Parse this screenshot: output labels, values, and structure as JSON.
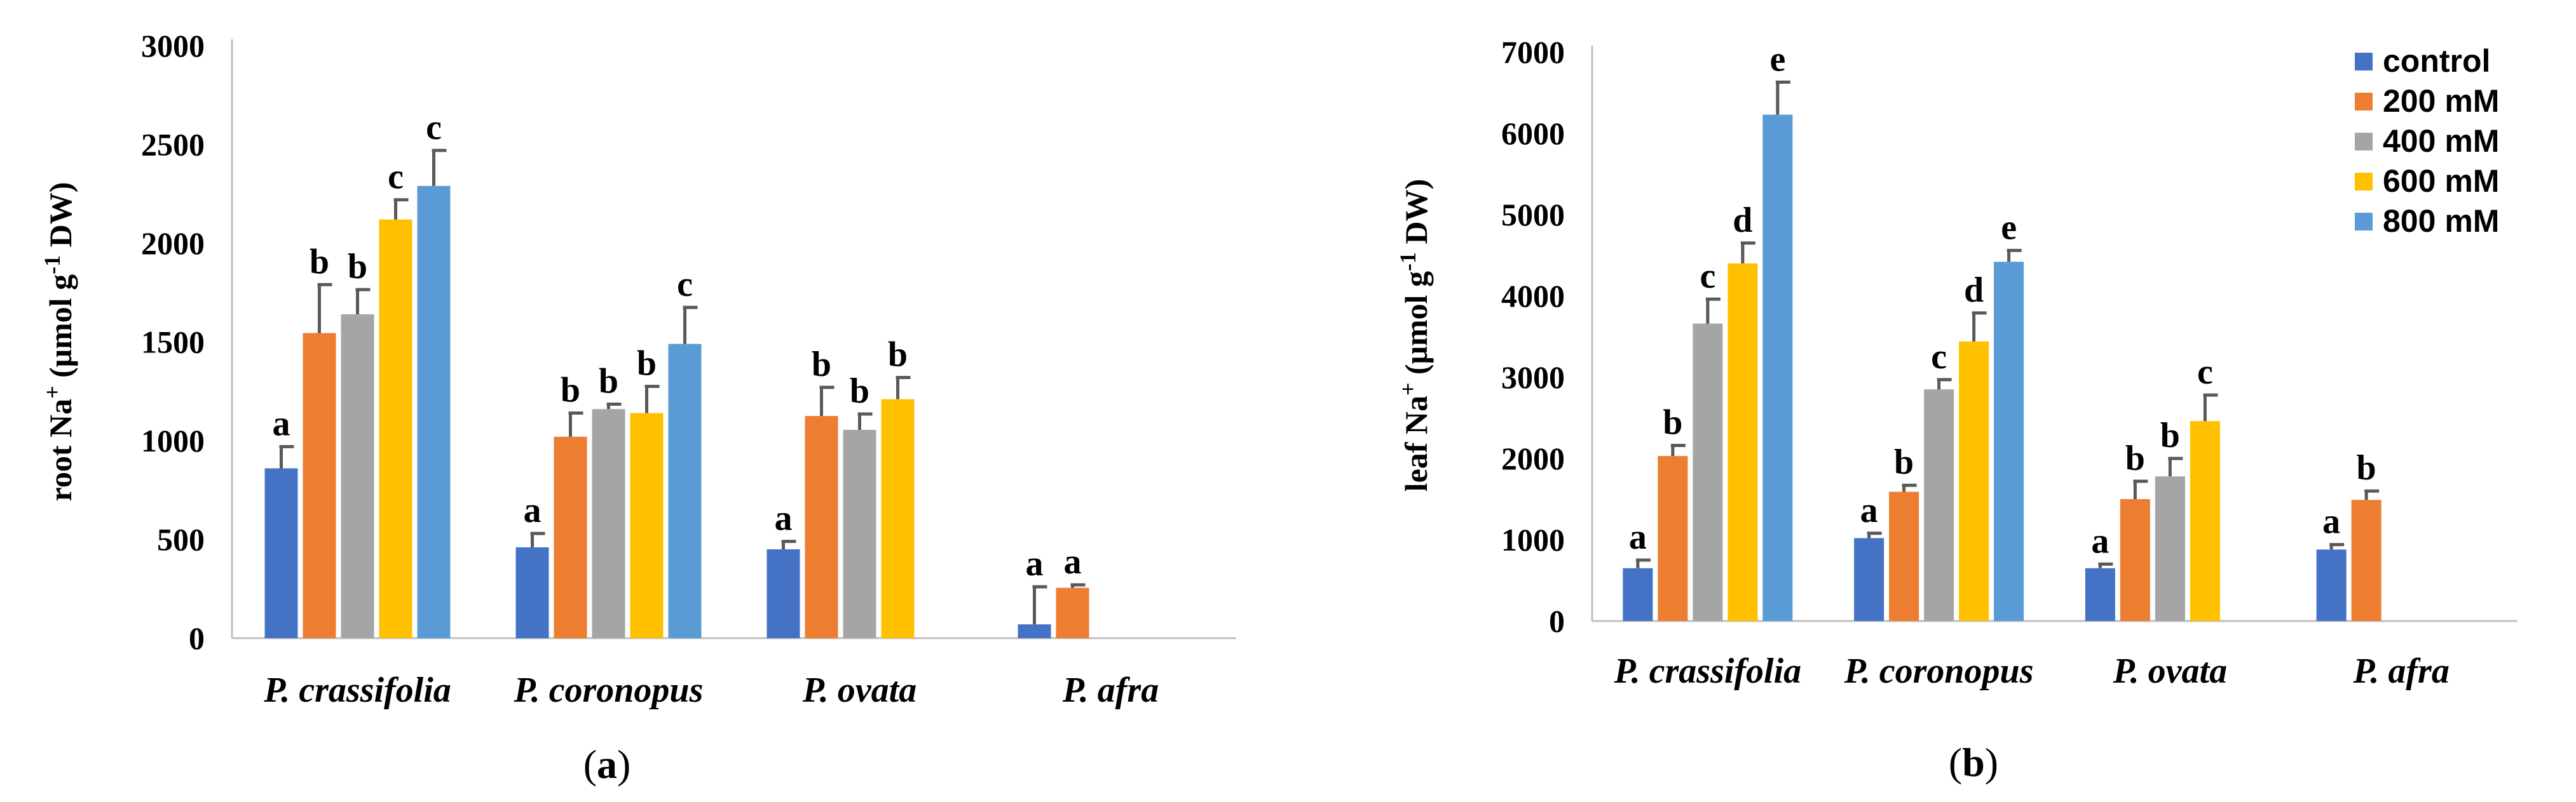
{
  "colors": {
    "control": "#4472C4",
    "200 mM": "#ED7D31",
    "400 mM": "#A5A5A5",
    "600 mM": "#FFC000",
    "800 mM": "#5B9BD5",
    "axis": "#bfbfbf",
    "error": "#595959"
  },
  "chart_data": [
    {
      "type": "bar",
      "panel_label": "a",
      "ylabel_main": "root Na",
      "ylabel_sup1": "+",
      "ylabel_mid": " (μmol g",
      "ylabel_sup2": "-1",
      "ylabel_end": " DW)",
      "ylim": [
        0,
        3000
      ],
      "yticks": [
        0,
        500,
        1000,
        1500,
        2000,
        2500,
        3000
      ],
      "categories": [
        "P. crassifolia",
        "P. coronopus",
        "P. ovata",
        "P. afra"
      ],
      "series": [
        {
          "name": "control",
          "values": [
            860,
            460,
            450,
            70
          ],
          "errors": [
            110,
            70,
            40,
            190
          ],
          "letters": [
            "a",
            "a",
            "a",
            "a"
          ]
        },
        {
          "name": "200 mM",
          "values": [
            1545,
            1020,
            1125,
            255
          ],
          "errors": [
            245,
            120,
            145,
            15
          ],
          "letters": [
            "b",
            "b",
            "b",
            "a"
          ]
        },
        {
          "name": "400 mM",
          "values": [
            1640,
            1160,
            1055,
            null
          ],
          "errors": [
            125,
            25,
            80,
            null
          ],
          "letters": [
            "b",
            "b",
            "b",
            null
          ]
        },
        {
          "name": "600 mM",
          "values": [
            2120,
            1140,
            1210,
            null
          ],
          "errors": [
            100,
            135,
            110,
            null
          ],
          "letters": [
            "c",
            "b",
            "b",
            null
          ]
        },
        {
          "name": "800 mM",
          "values": [
            2290,
            1490,
            null,
            null
          ],
          "errors": [
            180,
            185,
            null,
            null
          ],
          "letters": [
            "c",
            "c",
            null,
            null
          ]
        }
      ]
    },
    {
      "type": "bar",
      "panel_label": "b",
      "ylabel_main": "leaf Na",
      "ylabel_sup1": "+",
      "ylabel_mid": " (μmol g",
      "ylabel_sup2": "-1",
      "ylabel_end": " DW)",
      "ylim": [
        0,
        7000
      ],
      "yticks": [
        0,
        1000,
        2000,
        3000,
        4000,
        5000,
        6000,
        7000
      ],
      "categories": [
        "P. crassifolia",
        "P. coronopus",
        "P. ovata",
        "P. afra"
      ],
      "series": [
        {
          "name": "control",
          "values": [
            650,
            1020,
            650,
            880
          ],
          "errors": [
            100,
            60,
            50,
            60
          ],
          "letters": [
            "a",
            "a",
            "a",
            "a"
          ]
        },
        {
          "name": "200 mM",
          "values": [
            2030,
            1590,
            1500,
            1490
          ],
          "errors": [
            130,
            80,
            220,
            110
          ],
          "letters": [
            "b",
            "b",
            "b",
            "b"
          ]
        },
        {
          "name": "400 mM",
          "values": [
            3660,
            2850,
            1780,
            null
          ],
          "errors": [
            300,
            120,
            220,
            null
          ],
          "letters": [
            "c",
            "c",
            "b",
            null
          ]
        },
        {
          "name": "600 mM",
          "values": [
            4400,
            3440,
            2460,
            null
          ],
          "errors": [
            250,
            350,
            320,
            null
          ],
          "letters": [
            "d",
            "d",
            "c",
            null
          ]
        },
        {
          "name": "800 mM",
          "values": [
            6230,
            4420,
            null,
            null
          ],
          "errors": [
            400,
            140,
            null,
            null
          ],
          "letters": [
            "e",
            "e",
            null,
            null
          ]
        }
      ],
      "legend": [
        "control",
        "200 mM",
        "400 mM",
        "600 mM",
        "800 mM"
      ]
    }
  ]
}
